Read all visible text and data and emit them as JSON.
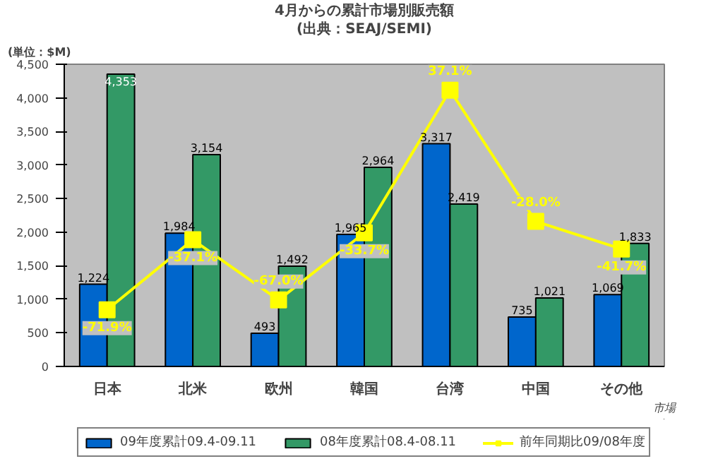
{
  "chart_data": {
    "type": "bar",
    "title": "4月からの累計市場別販売額",
    "subtitle": "(出典：SEAJ/SEMI)",
    "ylabel": "(単位：$M)",
    "xlabel": "市場",
    "categories": [
      "日本",
      "北米",
      "欧州",
      "韓国",
      "台湾",
      "中国",
      "その他"
    ],
    "series": [
      {
        "name": "09年度累計09.4-09.11",
        "color": "#0066cc",
        "values": [
          1224,
          1984,
          493,
          1965,
          3317,
          735,
          1069
        ],
        "value_labels": [
          "1,224",
          "1,984",
          "493",
          "1,965",
          "3,317",
          "735",
          "1,069"
        ]
      },
      {
        "name": "08年度累計08.4-08.11",
        "color": "#339966",
        "values": [
          4353,
          3154,
          1492,
          2964,
          2419,
          1021,
          1833
        ],
        "value_labels": [
          "4,353",
          "3,154",
          "1,492",
          "2,964",
          "2,419",
          "1,021",
          "1,833"
        ]
      },
      {
        "name": "前年同期比09/08年度",
        "type": "line",
        "axis": "y2",
        "color": "#ffff00",
        "marker": "square",
        "values": [
          -71.9,
          -37.1,
          -67.0,
          -33.7,
          37.1,
          -28.0,
          -41.7
        ],
        "value_labels": [
          "-71.9%",
          "-37.1%",
          "-67.0%",
          "-33.7%",
          "37.1%",
          "-28.0%",
          "-41.7%"
        ]
      }
    ],
    "data_labels": true,
    "ylim": [
      0,
      4500
    ],
    "yticks": [
      0,
      500,
      {
        "value": 1000,
        "label": "1,000"
      },
      {
        "value": 1500,
        "label": "1,500"
      },
      {
        "value": 2000,
        "label": "2,000"
      },
      {
        "value": 2500,
        "label": "2,500"
      },
      {
        "value": 3000,
        "label": "3,000"
      },
      {
        "value": 3500,
        "label": "3,500"
      },
      {
        "value": 4000,
        "label": "4,000"
      },
      {
        "value": 4500,
        "label": "4,500"
      }
    ],
    "y2lim": [
      -100,
      50
    ],
    "grid": false,
    "legend": "bottom"
  }
}
